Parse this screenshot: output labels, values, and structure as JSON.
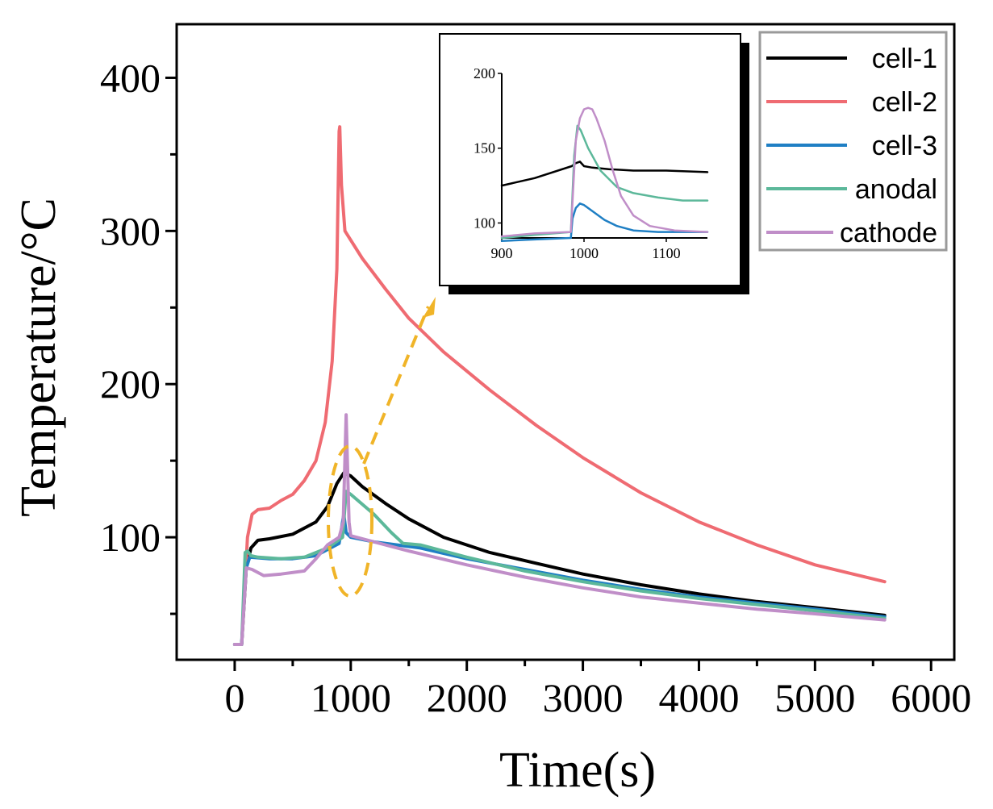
{
  "chart_data": {
    "type": "line",
    "xlabel": "Time(s)",
    "ylabel": "Temperature/°C",
    "xlim": [
      -500,
      6200
    ],
    "ylim": [
      20,
      435
    ],
    "xticks": [
      0,
      1000,
      2000,
      3000,
      4000,
      5000,
      6000
    ],
    "xtick_labels": [
      "0",
      "1000",
      "2000",
      "3000",
      "4000",
      "5000",
      "6000"
    ],
    "yticks": [
      100,
      200,
      300,
      400
    ],
    "ytick_labels": [
      "100",
      "200",
      "300",
      "400"
    ],
    "grid": false,
    "legend_position": "top-right",
    "series": [
      {
        "name": "cell-1",
        "color": "#000000",
        "points": [
          [
            0,
            30
          ],
          [
            60,
            30
          ],
          [
            100,
            80
          ],
          [
            140,
            93
          ],
          [
            200,
            98
          ],
          [
            300,
            99
          ],
          [
            500,
            102
          ],
          [
            700,
            110
          ],
          [
            800,
            120
          ],
          [
            880,
            135
          ],
          [
            940,
            142
          ],
          [
            1000,
            140
          ],
          [
            1100,
            133
          ],
          [
            1300,
            122
          ],
          [
            1500,
            112
          ],
          [
            1800,
            100
          ],
          [
            2200,
            90
          ],
          [
            2600,
            83
          ],
          [
            3000,
            76
          ],
          [
            3500,
            69
          ],
          [
            4000,
            63
          ],
          [
            4500,
            58
          ],
          [
            5000,
            54
          ],
          [
            5600,
            49
          ]
        ]
      },
      {
        "name": "cell-2",
        "color": "#ef6b72",
        "points": [
          [
            0,
            30
          ],
          [
            60,
            30
          ],
          [
            110,
            100
          ],
          [
            150,
            115
          ],
          [
            200,
            118
          ],
          [
            300,
            119
          ],
          [
            400,
            124
          ],
          [
            500,
            128
          ],
          [
            600,
            137
          ],
          [
            700,
            150
          ],
          [
            780,
            175
          ],
          [
            840,
            215
          ],
          [
            880,
            275
          ],
          [
            900,
            365
          ],
          [
            905,
            368
          ],
          [
            920,
            330
          ],
          [
            950,
            300
          ],
          [
            1100,
            282
          ],
          [
            1300,
            262
          ],
          [
            1500,
            243
          ],
          [
            1800,
            221
          ],
          [
            2200,
            196
          ],
          [
            2600,
            173
          ],
          [
            3000,
            152
          ],
          [
            3500,
            129
          ],
          [
            4000,
            110
          ],
          [
            4500,
            95
          ],
          [
            5000,
            82
          ],
          [
            5600,
            71
          ]
        ]
      },
      {
        "name": "cell-3",
        "color": "#1f7fc4",
        "points": [
          [
            0,
            30
          ],
          [
            60,
            30
          ],
          [
            80,
            60
          ],
          [
            100,
            80
          ],
          [
            130,
            87
          ],
          [
            300,
            86
          ],
          [
            500,
            86
          ],
          [
            700,
            88
          ],
          [
            900,
            96
          ],
          [
            940,
            115
          ],
          [
            960,
            103
          ],
          [
            1000,
            100
          ],
          [
            1200,
            97
          ],
          [
            1400,
            95
          ],
          [
            1600,
            93
          ],
          [
            2000,
            86
          ],
          [
            2500,
            79
          ],
          [
            3000,
            72
          ],
          [
            3500,
            66
          ],
          [
            4000,
            61
          ],
          [
            4500,
            57
          ],
          [
            5000,
            53
          ],
          [
            5600,
            48
          ]
        ]
      },
      {
        "name": "anodal",
        "color": "#5cb89a",
        "points": [
          [
            0,
            30
          ],
          [
            60,
            30
          ],
          [
            90,
            90
          ],
          [
            110,
            91
          ],
          [
            140,
            88
          ],
          [
            200,
            87
          ],
          [
            400,
            86
          ],
          [
            600,
            87
          ],
          [
            800,
            93
          ],
          [
            930,
            100
          ],
          [
            960,
            130
          ],
          [
            1000,
            128
          ],
          [
            1200,
            115
          ],
          [
            1350,
            103
          ],
          [
            1450,
            96
          ],
          [
            1600,
            95
          ],
          [
            2000,
            87
          ],
          [
            2500,
            78
          ],
          [
            3000,
            71
          ],
          [
            3500,
            65
          ],
          [
            4000,
            60
          ],
          [
            4500,
            56
          ],
          [
            5000,
            52
          ],
          [
            5600,
            47
          ]
        ]
      },
      {
        "name": "cathode",
        "color": "#c08ec8",
        "points": [
          [
            0,
            30
          ],
          [
            60,
            30
          ],
          [
            100,
            80
          ],
          [
            150,
            79
          ],
          [
            250,
            75
          ],
          [
            400,
            76
          ],
          [
            600,
            78
          ],
          [
            700,
            86
          ],
          [
            800,
            95
          ],
          [
            900,
            100
          ],
          [
            935,
            110
          ],
          [
            960,
            180
          ],
          [
            985,
            110
          ],
          [
            1000,
            101
          ],
          [
            1200,
            97
          ],
          [
            1500,
            91
          ],
          [
            2000,
            82
          ],
          [
            2500,
            74
          ],
          [
            3000,
            67
          ],
          [
            3500,
            61
          ],
          [
            4000,
            57
          ],
          [
            4500,
            53
          ],
          [
            5000,
            50
          ],
          [
            5600,
            46
          ]
        ]
      }
    ],
    "inset": {
      "xlim": [
        900,
        1150
      ],
      "ylim": [
        90,
        200
      ],
      "xticks": [
        900,
        1000,
        1100
      ],
      "xtick_labels": [
        "900",
        "1000",
        "1100"
      ],
      "yticks": [
        100,
        150,
        200
      ],
      "ytick_labels": [
        "100",
        "150",
        "200"
      ],
      "series": [
        {
          "name": "cell-1",
          "color": "#000000",
          "points": [
            [
              900,
              125
            ],
            [
              940,
              130
            ],
            [
              985,
              138
            ],
            [
              990,
              140
            ],
            [
              995,
              141
            ],
            [
              1000,
              138
            ],
            [
              1010,
              137
            ],
            [
              1030,
              136
            ],
            [
              1060,
              135
            ],
            [
              1100,
              135
            ],
            [
              1150,
              134
            ]
          ]
        },
        {
          "name": "cell-3",
          "color": "#1f7fc4",
          "points": [
            [
              900,
              88
            ],
            [
              940,
              89
            ],
            [
              984,
              90
            ],
            [
              986,
              103
            ],
            [
              990,
              110
            ],
            [
              995,
              113
            ],
            [
              1000,
              112
            ],
            [
              1010,
              108
            ],
            [
              1025,
              102
            ],
            [
              1040,
              98
            ],
            [
              1060,
              95
            ],
            [
              1090,
              94
            ],
            [
              1150,
              94
            ]
          ]
        },
        {
          "name": "anodal",
          "color": "#5cb89a",
          "points": [
            [
              900,
              90
            ],
            [
              940,
              92
            ],
            [
              984,
              94
            ],
            [
              988,
              145
            ],
            [
              992,
              165
            ],
            [
              996,
              162
            ],
            [
              1005,
              150
            ],
            [
              1020,
              135
            ],
            [
              1040,
              124
            ],
            [
              1060,
              120
            ],
            [
              1090,
              117
            ],
            [
              1120,
              115
            ],
            [
              1150,
              115
            ]
          ]
        },
        {
          "name": "cathode",
          "color": "#c08ec8",
          "points": [
            [
              900,
              91
            ],
            [
              940,
              93
            ],
            [
              984,
              94
            ],
            [
              990,
              155
            ],
            [
              995,
              170
            ],
            [
              1000,
              176
            ],
            [
              1005,
              177
            ],
            [
              1010,
              176
            ],
            [
              1015,
              170
            ],
            [
              1025,
              155
            ],
            [
              1035,
              135
            ],
            [
              1045,
              118
            ],
            [
              1060,
              105
            ],
            [
              1080,
              98
            ],
            [
              1110,
              95
            ],
            [
              1150,
              94
            ]
          ]
        }
      ]
    }
  }
}
